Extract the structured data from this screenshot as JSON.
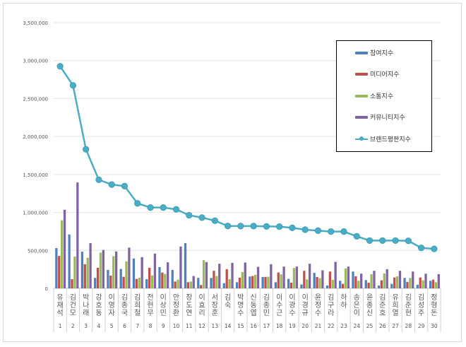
{
  "chart_data": {
    "type": "bar",
    "categories": [
      "유재석",
      "김건모",
      "박나래",
      "강호동",
      "이영자",
      "김종국",
      "김희철",
      "전현무",
      "이상민",
      "안정환",
      "장도연",
      "이효리",
      "서장훈",
      "김숙",
      "박명수",
      "신동엽",
      "김종민",
      "이수근",
      "이광수",
      "이경규",
      "윤정수",
      "김구라",
      "하하",
      "송은이",
      "윤종신",
      "김준호",
      "유희열",
      "김준현",
      "김성주",
      "정형돈"
    ],
    "ranks": [
      "1",
      "2",
      "3",
      "4",
      "5",
      "6",
      "7",
      "8",
      "9",
      "10",
      "11",
      "12",
      "13",
      "14",
      "15",
      "16",
      "17",
      "18",
      "19",
      "20",
      "21",
      "22",
      "23",
      "24",
      "25",
      "26",
      "27",
      "28",
      "29",
      "30"
    ],
    "ylim": [
      0,
      3500000
    ],
    "yticks": [
      "0",
      "500,000",
      "1,000,000",
      "1,500,000",
      "2,000,000",
      "2,500,000",
      "3,000,000",
      "3,500,000"
    ],
    "grid": true,
    "legend_position": "top-right",
    "series": [
      {
        "name": "참여지수",
        "type": "bar",
        "color": "#4f81bd",
        "values": [
          530000,
          710000,
          483000,
          137000,
          243000,
          255000,
          393000,
          121000,
          280000,
          243000,
          595000,
          137000,
          137000,
          68000,
          81000,
          156000,
          150000,
          81000,
          125000,
          50000,
          203000,
          37000,
          100000,
          221000,
          109000,
          37000,
          59000,
          137000,
          47000,
          100000
        ]
      },
      {
        "name": "미디어지수",
        "type": "bar",
        "color": "#c0504d",
        "values": [
          427000,
          121000,
          318000,
          271000,
          168000,
          152000,
          124000,
          271000,
          208000,
          90000,
          81000,
          44000,
          231000,
          252000,
          140000,
          162000,
          150000,
          209000,
          75000,
          231000,
          150000,
          221000,
          59000,
          158000,
          75000,
          106000,
          143000,
          84000,
          143000,
          115000
        ]
      },
      {
        "name": "소통지수",
        "type": "bar",
        "color": "#9bbb59",
        "values": [
          897000,
          418000,
          402000,
          470000,
          424000,
          355000,
          140000,
          171000,
          190000,
          115000,
          90000,
          371000,
          162000,
          121000,
          215000,
          178000,
          153000,
          184000,
          268000,
          118000,
          134000,
          112000,
          262000,
          100000,
          186000,
          196000,
          158000,
          137000,
          106000,
          81000
        ]
      },
      {
        "name": "커뮤니티지수",
        "type": "bar",
        "color": "#8064a2",
        "values": [
          1035000,
          1395000,
          595000,
          505000,
          486000,
          536000,
          411000,
          458000,
          343000,
          551000,
          162000,
          346000,
          324000,
          336000,
          340000,
          283000,
          318000,
          287000,
          287000,
          324000,
          237000,
          349000,
          287000,
          193000,
          231000,
          252000,
          231000,
          221000,
          193000,
          187000
        ]
      },
      {
        "name": "브랜드평판지수",
        "type": "line",
        "color": "#4bacc6",
        "values": [
          2925000,
          2673000,
          1832000,
          1430000,
          1367000,
          1346000,
          1119000,
          1065000,
          1065000,
          1040000,
          963000,
          932000,
          891000,
          822000,
          820000,
          820000,
          816000,
          813000,
          797000,
          773000,
          760000,
          748000,
          748000,
          685000,
          629000,
          629000,
          629000,
          626000,
          533000,
          520000
        ]
      }
    ]
  }
}
